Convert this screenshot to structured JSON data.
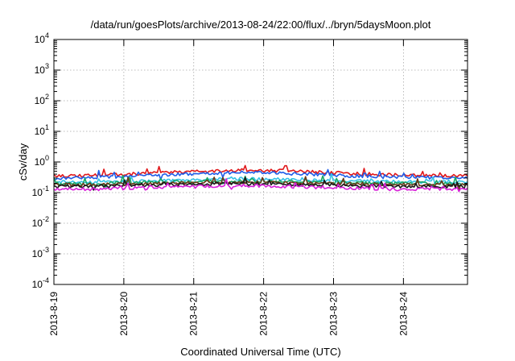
{
  "chart_data": {
    "type": "line",
    "title": "/data/run/goesPlots/archive/2013-08-24/22:00/flux/../bryn/5daysMoon.plot",
    "xlabel": "Coordinated Universal Time (UTC)",
    "ylabel": "cSv/day",
    "y_scale": "log",
    "ylim": [
      0.0001,
      10000
    ],
    "xlim": [
      "2013-08-19T00:00",
      "2013-08-24T22:00"
    ],
    "x_ticks": [
      "2013-8-19",
      "2013-8-20",
      "2013-8-21",
      "2013-8-22",
      "2013-8-23",
      "2013-8-24"
    ],
    "y_ticks": [
      {
        "base": "10",
        "exp": "4"
      },
      {
        "base": "10",
        "exp": "3"
      },
      {
        "base": "10",
        "exp": "2"
      },
      {
        "base": "10",
        "exp": "1"
      },
      {
        "base": "10",
        "exp": "0"
      },
      {
        "base": "10",
        "exp": "-1"
      },
      {
        "base": "10",
        "exp": "-2"
      },
      {
        "base": "10",
        "exp": "-3"
      },
      {
        "base": "10",
        "exp": "-4"
      }
    ],
    "grid": true,
    "series": [
      {
        "color": "#e0181b",
        "values": [
          0.34,
          0.36,
          0.4,
          0.46,
          0.5,
          0.54,
          0.52,
          0.47,
          0.42,
          0.38,
          0.36,
          0.35
        ]
      },
      {
        "color": "#1f5de8",
        "values": [
          0.3,
          0.31,
          0.34,
          0.38,
          0.42,
          0.45,
          0.44,
          0.39,
          0.35,
          0.32,
          0.31,
          0.3
        ]
      },
      {
        "color": "#36c2e6",
        "values": [
          0.22,
          0.22,
          0.23,
          0.25,
          0.27,
          0.28,
          0.27,
          0.25,
          0.24,
          0.23,
          0.22,
          0.22
        ]
      },
      {
        "color": "#19a866",
        "values": [
          0.2,
          0.2,
          0.21,
          0.22,
          0.23,
          0.24,
          0.23,
          0.22,
          0.21,
          0.2,
          0.2,
          0.2
        ]
      },
      {
        "color": "#6a3a18",
        "values": [
          0.18,
          0.18,
          0.19,
          0.2,
          0.21,
          0.22,
          0.21,
          0.2,
          0.19,
          0.18,
          0.18,
          0.18
        ]
      },
      {
        "color": "#1a1a1a",
        "values": [
          0.16,
          0.16,
          0.17,
          0.18,
          0.19,
          0.2,
          0.19,
          0.18,
          0.17,
          0.16,
          0.16,
          0.16
        ]
      },
      {
        "color": "#d81fd8",
        "values": [
          0.13,
          0.13,
          0.14,
          0.15,
          0.16,
          0.17,
          0.16,
          0.15,
          0.14,
          0.13,
          0.13,
          0.13
        ]
      }
    ]
  }
}
